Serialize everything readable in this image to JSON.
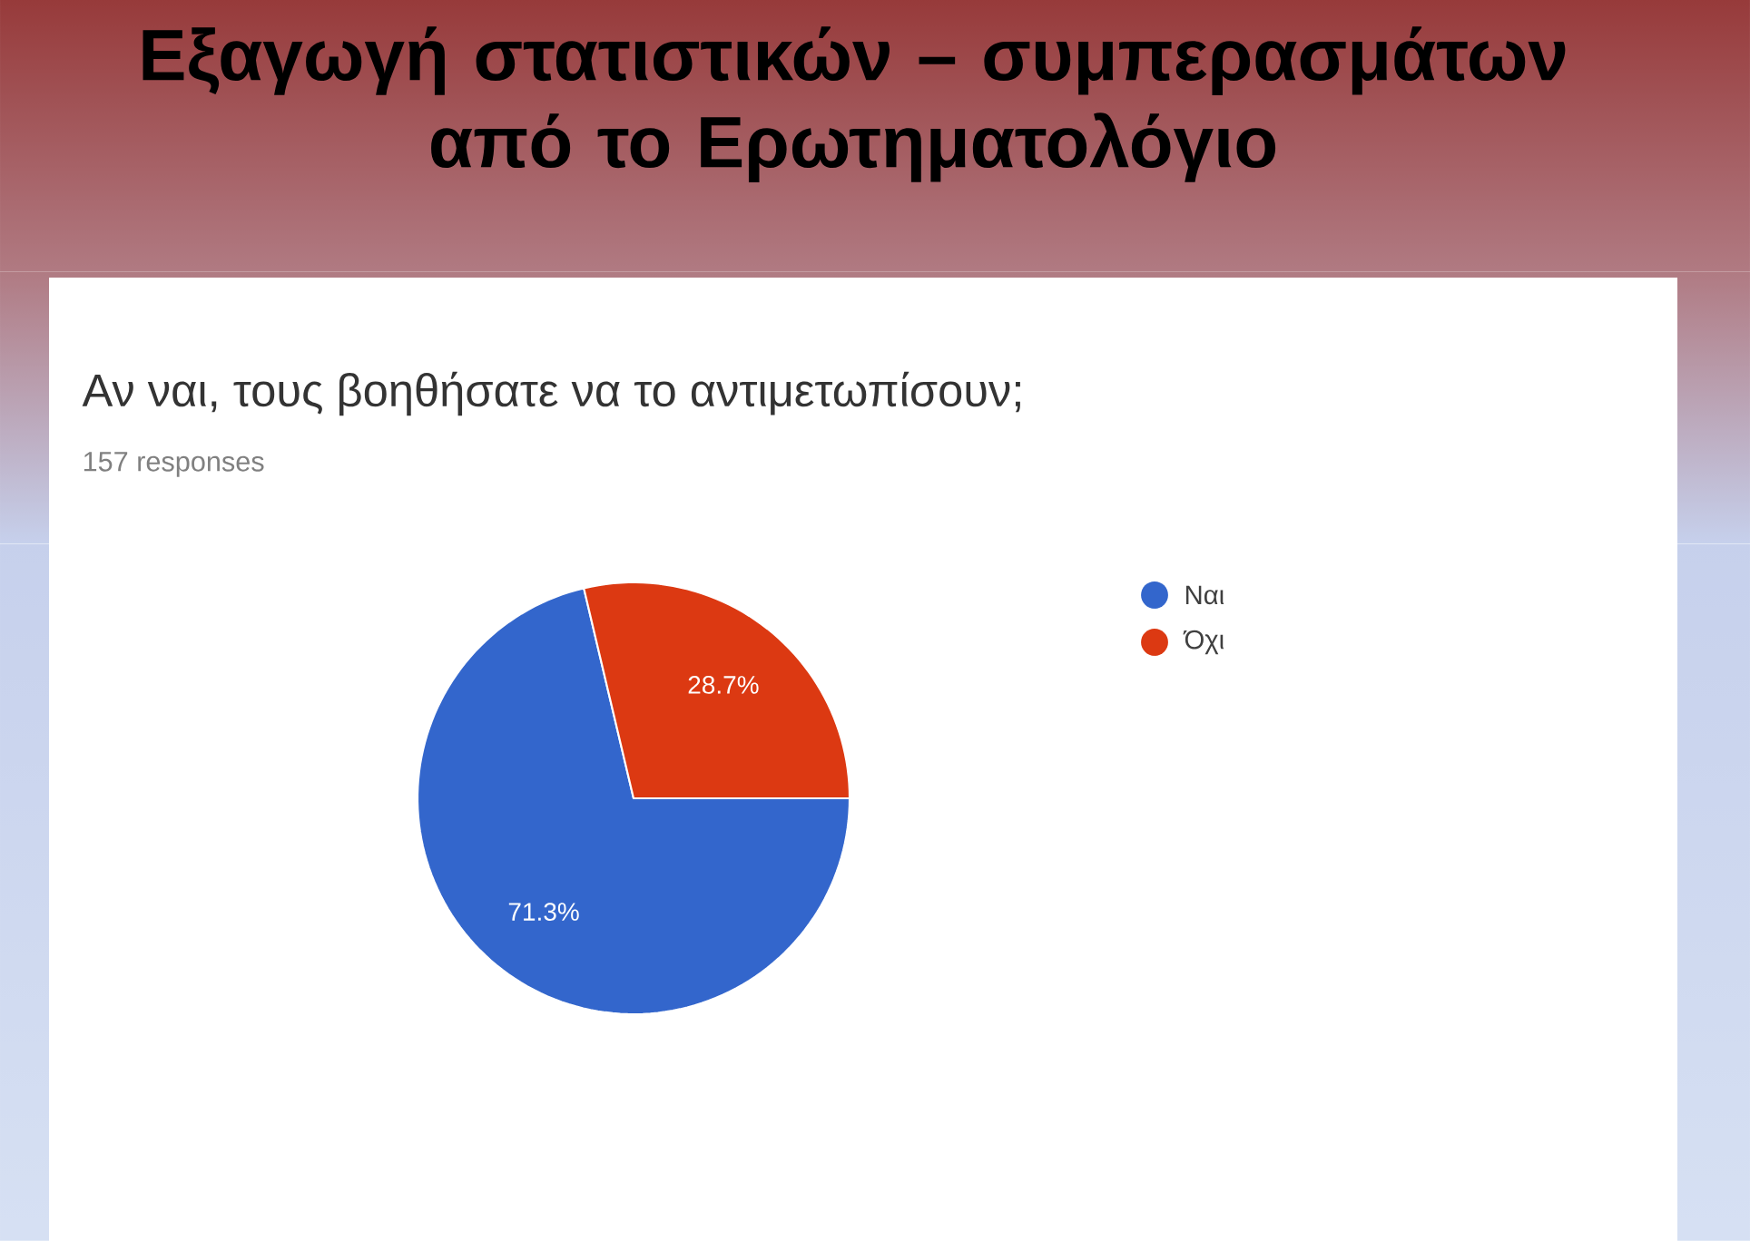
{
  "chart_data": {
    "type": "pie",
    "title": "Αν ναι, τους βοηθήσατε να το αντιμετωπίσουν;",
    "subtitle": "157 responses",
    "annotations": [
      "Εξαγωγή στατιστικών – συμπερασμάτων από το Ερωτηματολόγιο"
    ],
    "categories": [
      "Ναι",
      "Όχι"
    ],
    "values": [
      71.3,
      28.7
    ],
    "value_labels": [
      "71.3%",
      "28.7%"
    ],
    "colors": [
      "#3366cc",
      "#dc3912"
    ],
    "legend": "top right"
  }
}
